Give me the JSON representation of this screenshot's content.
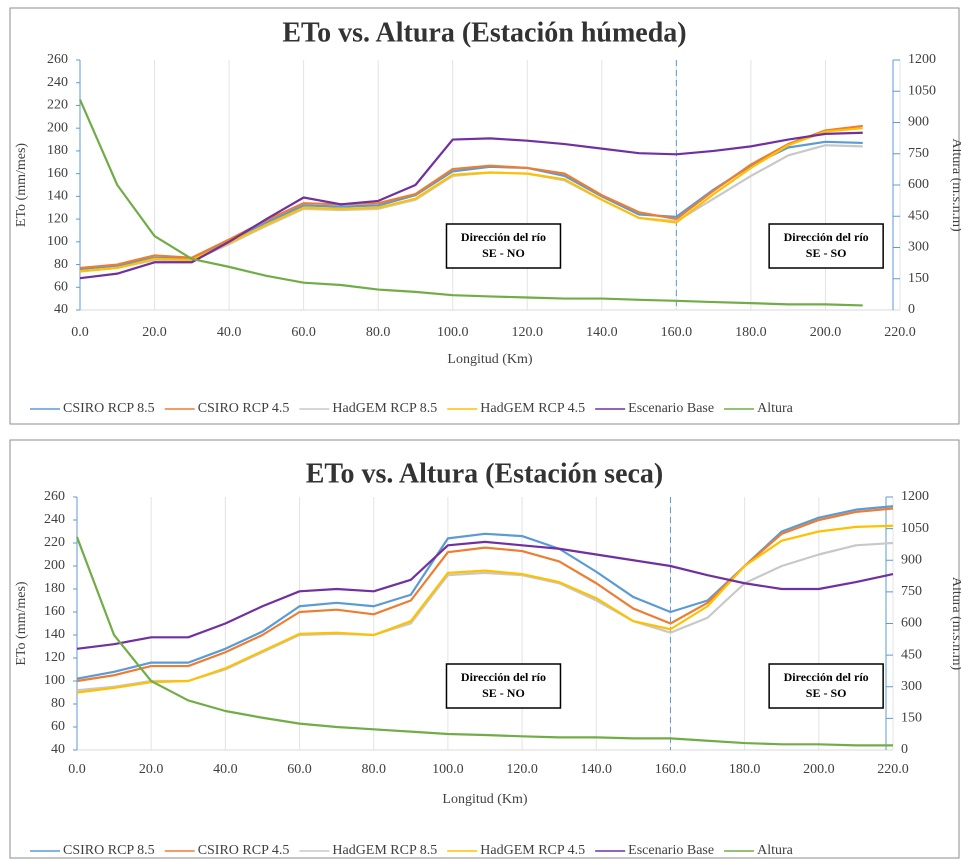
{
  "chart_data": [
    {
      "type": "line",
      "title": "ETo vs. Altura (Estación húmeda)",
      "x_label": "Longitud (Km)",
      "y_label": "ETo (mm/mes)",
      "y2_label": "Altura (m.s.n.m)",
      "x": [
        0,
        10,
        20,
        30,
        40,
        50,
        60,
        70,
        80,
        90,
        100,
        110,
        120,
        130,
        140,
        150,
        160,
        170,
        180,
        190,
        200,
        210
      ],
      "xlim": [
        0,
        220
      ],
      "xticks": [
        {
          "value": 0,
          "label": "0.0"
        },
        {
          "value": 20,
          "label": "20.0"
        },
        {
          "value": 40,
          "label": "40.0"
        },
        {
          "value": 60,
          "label": "60.0"
        },
        {
          "value": 80,
          "label": "80.0"
        },
        {
          "value": 100,
          "label": "100.0"
        },
        {
          "value": 120,
          "label": "120.0"
        },
        {
          "value": 140,
          "label": "140.0"
        },
        {
          "value": 160,
          "label": "160.0"
        },
        {
          "value": 180,
          "label": "180.0"
        },
        {
          "value": 200,
          "label": "200.0"
        },
        {
          "value": 220,
          "label": "220.0"
        }
      ],
      "ylim": [
        40,
        260
      ],
      "yticks": [
        40,
        60,
        80,
        100,
        120,
        140,
        160,
        180,
        200,
        220,
        240,
        260
      ],
      "y2lim": [
        0,
        1200
      ],
      "y2ticks": [
        0,
        150,
        300,
        450,
        600,
        750,
        900,
        1050,
        1200
      ],
      "grid": "x",
      "vline": 160,
      "annotations": [
        [
          "Dirección del río",
          "SE - NO"
        ],
        [
          "Dirección del río",
          "SE - SO"
        ]
      ],
      "series": [
        {
          "name": "CSIRO RCP 8.5",
          "color": "#5b9bd5",
          "values": [
            76,
            79,
            86,
            85,
            101,
            117,
            132,
            131,
            132,
            141,
            162,
            166,
            165,
            158,
            140,
            124,
            122,
            146,
            167,
            183,
            188,
            187
          ]
        },
        {
          "name": "CSIRO RCP 4.5",
          "color": "#ed7d31",
          "values": [
            77,
            80,
            88,
            86,
            102,
            119,
            134,
            133,
            134,
            142,
            164,
            167,
            165,
            160,
            141,
            126,
            120,
            145,
            168,
            186,
            198,
            202
          ]
        },
        {
          "name": "HadGEM RCP 8.5",
          "color": "#c8c8c8",
          "values": [
            74,
            77,
            84,
            83,
            98,
            114,
            129,
            128,
            129,
            137,
            158,
            161,
            160,
            154,
            137,
            121,
            118,
            138,
            158,
            176,
            185,
            184
          ]
        },
        {
          "name": "HadGEM RCP 4.5",
          "color": "#ffc000",
          "values": [
            74,
            77,
            85,
            84,
            99,
            115,
            130,
            129,
            130,
            138,
            159,
            161,
            160,
            155,
            137,
            121,
            117,
            142,
            165,
            185,
            197,
            200
          ]
        },
        {
          "name": "Escenario Base",
          "color": "#7030a0",
          "values": [
            68,
            72,
            82,
            82,
            100,
            120,
            139,
            133,
            136,
            150,
            190,
            191,
            189,
            186,
            182,
            178,
            177,
            180,
            184,
            190,
            195,
            196
          ]
        },
        {
          "name": "Altura",
          "color": "#70ad47",
          "axis": "y2",
          "values": [
            1010,
            600,
            355,
            245,
            207,
            164,
            131,
            120,
            98,
            87,
            71,
            65,
            60,
            55,
            55,
            49,
            44,
            38,
            33,
            27,
            27,
            22
          ]
        }
      ]
    },
    {
      "type": "line",
      "title": "ETo vs. Altura (Estación seca)",
      "x_label": "Longitud (Km)",
      "y_label": "ETo (mm/mes)",
      "y2_label": "Altura (m.s.n.m)",
      "x": [
        0,
        10,
        20,
        30,
        40,
        50,
        60,
        70,
        80,
        90,
        100,
        110,
        120,
        130,
        140,
        150,
        160,
        170,
        180,
        190,
        200,
        210,
        220
      ],
      "xlim": [
        0,
        220
      ],
      "xticks": [
        {
          "value": 0,
          "label": "0.0"
        },
        {
          "value": 20,
          "label": "20.0"
        },
        {
          "value": 40,
          "label": "40.0"
        },
        {
          "value": 60,
          "label": "60.0"
        },
        {
          "value": 80,
          "label": "80.0"
        },
        {
          "value": 100,
          "label": "100.0"
        },
        {
          "value": 120,
          "label": "120.0"
        },
        {
          "value": 140,
          "label": "140.0"
        },
        {
          "value": 160,
          "label": "160.0"
        },
        {
          "value": 180,
          "label": "180.0"
        },
        {
          "value": 200,
          "label": "200.0"
        },
        {
          "value": 220,
          "label": "220.0"
        }
      ],
      "ylim": [
        40,
        260
      ],
      "yticks": [
        40,
        60,
        80,
        100,
        120,
        140,
        160,
        180,
        200,
        220,
        240,
        260
      ],
      "y2lim": [
        0,
        1200
      ],
      "y2ticks": [
        0,
        150,
        300,
        450,
        600,
        750,
        900,
        1050,
        1200
      ],
      "grid": "x",
      "vline": 160,
      "annotations": [
        [
          "Dirección del río",
          "SE - NO"
        ],
        [
          "Dirección del río",
          "SE - SO"
        ]
      ],
      "series": [
        {
          "name": "CSIRO RCP 8.5",
          "color": "#5b9bd5",
          "values": [
            102,
            108,
            116,
            116,
            128,
            143,
            165,
            168,
            165,
            175,
            224,
            228,
            226,
            215,
            195,
            173,
            160,
            170,
            200,
            230,
            242,
            249,
            252
          ]
        },
        {
          "name": "CSIRO RCP 4.5",
          "color": "#ed7d31",
          "values": [
            100,
            105,
            113,
            113,
            125,
            140,
            160,
            162,
            158,
            170,
            212,
            216,
            213,
            204,
            185,
            163,
            150,
            168,
            200,
            228,
            240,
            247,
            250
          ]
        },
        {
          "name": "HadGEM RCP 8.5",
          "color": "#c8c8c8",
          "values": [
            92,
            95,
            100,
            100,
            110,
            125,
            140,
            141,
            140,
            150,
            192,
            194,
            192,
            185,
            170,
            152,
            142,
            155,
            185,
            200,
            210,
            218,
            220
          ]
        },
        {
          "name": "HadGEM RCP 4.5",
          "color": "#ffc000",
          "values": [
            90,
            94,
            99,
            100,
            111,
            126,
            141,
            142,
            140,
            152,
            194,
            196,
            193,
            186,
            172,
            152,
            145,
            165,
            200,
            222,
            230,
            234,
            235
          ]
        },
        {
          "name": "Escenario Base",
          "color": "#7030a0",
          "values": [
            128,
            132,
            138,
            138,
            150,
            165,
            178,
            180,
            178,
            188,
            218,
            221,
            218,
            215,
            210,
            205,
            200,
            192,
            185,
            180,
            180,
            186,
            193
          ]
        },
        {
          "name": "Altura",
          "color": "#70ad47",
          "axis": "y2",
          "values": [
            1010,
            545,
            327,
            235,
            185,
            153,
            125,
            109,
            98,
            87,
            76,
            71,
            65,
            60,
            60,
            55,
            55,
            44,
            33,
            27,
            27,
            22,
            22
          ]
        }
      ]
    }
  ]
}
